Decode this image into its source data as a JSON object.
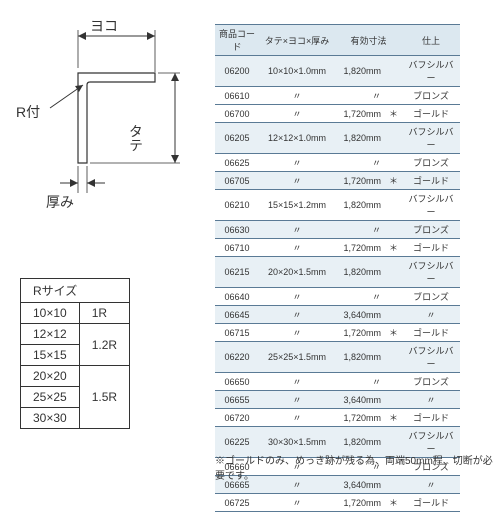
{
  "diagram": {
    "yoko": "ヨコ",
    "tate": "タテ",
    "atsumi": "厚み",
    "rtsuki": "R付"
  },
  "rtable": {
    "header": "Rサイズ",
    "rows": [
      {
        "size": "10×10",
        "r": "1R"
      },
      {
        "size": "12×12",
        "r": "1.2R"
      },
      {
        "size": "15×15",
        "r": ""
      },
      {
        "size": "20×20",
        "r": "1.5R"
      },
      {
        "size": "25×25",
        "r": ""
      },
      {
        "size": "30×30",
        "r": ""
      }
    ]
  },
  "main": {
    "headers": {
      "code": "商品コード",
      "dim": "タテ×ヨコ×厚み",
      "eff": "有効寸法",
      "fin": "仕上"
    },
    "rows": [
      {
        "code": "06200",
        "dim": "10×10×1.0mm",
        "eff": "1,820mm",
        "star": "",
        "fin": "バフシルバー",
        "shade": 1
      },
      {
        "code": "06610",
        "dim": "〃",
        "eff": "〃",
        "star": "",
        "fin": "ブロンズ",
        "shade": 0
      },
      {
        "code": "06700",
        "dim": "〃",
        "eff": "1,720mm",
        "star": "＊",
        "fin": "ゴールド",
        "shade": 0
      },
      {
        "code": "06205",
        "dim": "12×12×1.0mm",
        "eff": "1,820mm",
        "star": "",
        "fin": "バフシルバー",
        "shade": 1
      },
      {
        "code": "06625",
        "dim": "〃",
        "eff": "〃",
        "star": "",
        "fin": "ブロンズ",
        "shade": 0
      },
      {
        "code": "06705",
        "dim": "〃",
        "eff": "1,720mm",
        "star": "＊",
        "fin": "ゴールド",
        "shade": 1
      },
      {
        "code": "06210",
        "dim": "15×15×1.2mm",
        "eff": "1,820mm",
        "star": "",
        "fin": "バフシルバー",
        "shade": 0
      },
      {
        "code": "06630",
        "dim": "〃",
        "eff": "〃",
        "star": "",
        "fin": "ブロンズ",
        "shade": 1
      },
      {
        "code": "06710",
        "dim": "〃",
        "eff": "1,720mm",
        "star": "＊",
        "fin": "ゴールド",
        "shade": 0
      },
      {
        "code": "06215",
        "dim": "20×20×1.5mm",
        "eff": "1,820mm",
        "star": "",
        "fin": "バフシルバー",
        "shade": 1
      },
      {
        "code": "06640",
        "dim": "〃",
        "eff": "〃",
        "star": "",
        "fin": "ブロンズ",
        "shade": 0
      },
      {
        "code": "06645",
        "dim": "〃",
        "eff": "3,640mm",
        "star": "",
        "fin": "〃",
        "shade": 1
      },
      {
        "code": "06715",
        "dim": "〃",
        "eff": "1,720mm",
        "star": "＊",
        "fin": "ゴールド",
        "shade": 0
      },
      {
        "code": "06220",
        "dim": "25×25×1.5mm",
        "eff": "1,820mm",
        "star": "",
        "fin": "バフシルバー",
        "shade": 1
      },
      {
        "code": "06650",
        "dim": "〃",
        "eff": "〃",
        "star": "",
        "fin": "ブロンズ",
        "shade": 0
      },
      {
        "code": "06655",
        "dim": "〃",
        "eff": "3,640mm",
        "star": "",
        "fin": "〃",
        "shade": 1
      },
      {
        "code": "06720",
        "dim": "〃",
        "eff": "1,720mm",
        "star": "＊",
        "fin": "ゴールド",
        "shade": 0
      },
      {
        "code": "06225",
        "dim": "30×30×1.5mm",
        "eff": "1,820mm",
        "star": "",
        "fin": "バフシルバー",
        "shade": 1
      },
      {
        "code": "06660",
        "dim": "〃",
        "eff": "〃",
        "star": "",
        "fin": "ブロンズ",
        "shade": 0
      },
      {
        "code": "06665",
        "dim": "〃",
        "eff": "3,640mm",
        "star": "",
        "fin": "〃",
        "shade": 1
      },
      {
        "code": "06725",
        "dim": "〃",
        "eff": "1,720mm",
        "star": "＊",
        "fin": "ゴールド",
        "shade": 0
      }
    ]
  },
  "note": "※ゴールドのみ、めっき跡が残る為、両端50mm程、切断が必要です。"
}
